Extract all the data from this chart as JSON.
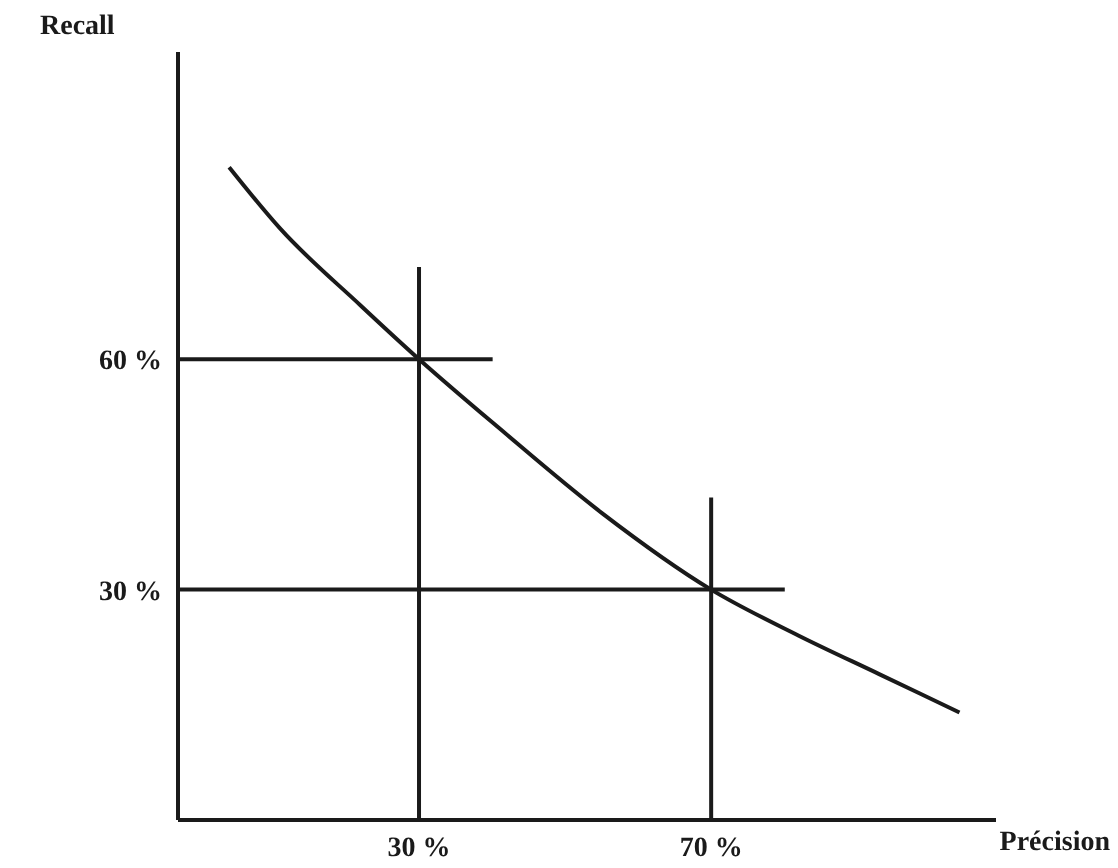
{
  "chart_data": {
    "type": "line",
    "xlabel": "Précision",
    "ylabel": "Recall",
    "x": [
      4,
      11,
      22,
      30,
      41,
      55,
      70,
      82,
      93,
      104
    ],
    "values": [
      85,
      77,
      67,
      60,
      51,
      40,
      30,
      24,
      19,
      14
    ],
    "color": "#1a1a1a",
    "xlim": [
      -3,
      109
    ],
    "ylim": [
      0,
      100
    ],
    "xticks": [
      {
        "value": 30,
        "label": "30 %"
      },
      {
        "value": 70,
        "label": "70 %"
      }
    ],
    "yticks": [
      {
        "value": 30,
        "label": "30 %"
      },
      {
        "value": 60,
        "label": "60 %"
      }
    ],
    "ref_lines": [
      {
        "axis": "y",
        "value": 60,
        "color": "#1a1a1a"
      },
      {
        "axis": "y",
        "value": 30,
        "color": "#1a1a1a"
      },
      {
        "axis": "x",
        "value": 30,
        "color": "#1a1a1a"
      },
      {
        "axis": "x",
        "value": 70,
        "color": "#1a1a1a"
      }
    ],
    "grid": false,
    "legend": false,
    "marker": "none",
    "line_style": "solid"
  }
}
